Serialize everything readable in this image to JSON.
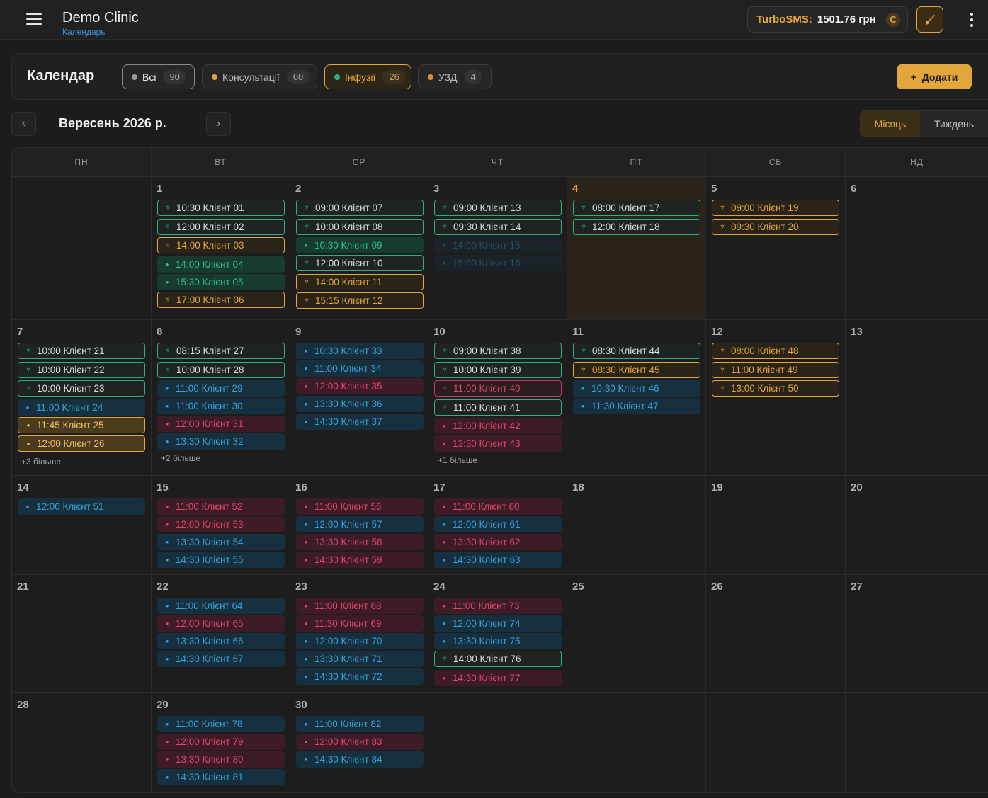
{
  "header": {
    "app_title": "Demo Clinic",
    "subtitle": "Календарь",
    "sms_label": "TurboSMS:",
    "sms_balance": "1501.76 грн",
    "refresh_glyph": "C"
  },
  "panel": {
    "title": "Календар",
    "filters": [
      {
        "label": "Всі",
        "count": "90",
        "dot": "#9a9a9a",
        "state": "all"
      },
      {
        "label": "Консультації",
        "count": "60",
        "dot": "#e2a63b",
        "state": ""
      },
      {
        "label": "Інфузії",
        "count": "26",
        "dot": "#2fae84",
        "state": "inf"
      },
      {
        "label": "УЗД",
        "count": "4",
        "dot": "#e08a3b",
        "state": ""
      }
    ],
    "add_label": "Додати",
    "add_icon": "+"
  },
  "nav": {
    "month_label": "Вересень 2026 р.",
    "prev_glyph": "‹",
    "next_glyph": "›",
    "view_month": "Місяць",
    "view_week": "Тиждень"
  },
  "weekdays": [
    "ПН",
    "ВТ",
    "СР",
    "ЧТ",
    "ПТ",
    "СБ",
    "НД"
  ],
  "weeks": [
    [
      {
        "day": "",
        "events": []
      },
      {
        "day": "1",
        "events": [
          {
            "t": "10:30 Клієнт 01",
            "k": "outline-green",
            "i": "f"
          },
          {
            "t": "12:00 Клієнт 02",
            "k": "outline-green",
            "i": "f"
          },
          {
            "t": "14:00 Клієнт 03",
            "k": "outline-orange",
            "i": "f"
          },
          {
            "t": "14:00 Клієнт 04",
            "k": "fill-green",
            "i": "p"
          },
          {
            "t": "15:30 Клієнт 05",
            "k": "fill-green",
            "i": "p"
          },
          {
            "t": "17:00 Клієнт 06",
            "k": "outline-orange",
            "i": "f"
          }
        ]
      },
      {
        "day": "2",
        "events": [
          {
            "t": "09:00 Клієнт 07",
            "k": "outline-green",
            "i": "f"
          },
          {
            "t": "10:00 Клієнт 08",
            "k": "outline-green",
            "i": "f"
          },
          {
            "t": "10:30 Клієнт 09",
            "k": "fill-green",
            "i": "p"
          },
          {
            "t": "12:00 Клієнт 10",
            "k": "outline-green",
            "i": "f"
          },
          {
            "t": "14:00 Клієнт 11",
            "k": "outline-orange",
            "i": "f"
          },
          {
            "t": "15:15 Клієнт 12",
            "k": "outline-orange",
            "i": "f"
          }
        ]
      },
      {
        "day": "3",
        "events": [
          {
            "t": "09:00 Клієнт 13",
            "k": "outline-green",
            "i": "f"
          },
          {
            "t": "09:30 Клієнт 14",
            "k": "outline-green",
            "i": "f"
          },
          {
            "t": "14:00 Клієнт 15",
            "k": "fill-blue faded",
            "i": "p"
          },
          {
            "t": "15:00 Клієнт 16",
            "k": "fill-blue faded",
            "i": "p"
          }
        ]
      },
      {
        "day": "4",
        "today": true,
        "events": [
          {
            "t": "08:00 Клієнт 17",
            "k": "outline-green",
            "i": "f"
          },
          {
            "t": "12:00 Клієнт 18",
            "k": "outline-green",
            "i": "f"
          }
        ]
      },
      {
        "day": "5",
        "events": [
          {
            "t": "09:00 Клієнт 19",
            "k": "outline-orange",
            "i": "f"
          },
          {
            "t": "09:30 Клієнт 20",
            "k": "outline-orange",
            "i": "f"
          }
        ]
      },
      {
        "day": "6",
        "events": []
      }
    ],
    [
      {
        "day": "7",
        "more": "+3 більше",
        "events": [
          {
            "t": "10:00 Клієнт 21",
            "k": "outline-green",
            "i": "f"
          },
          {
            "t": "10:00 Клієнт 22",
            "k": "outline-green",
            "i": "f"
          },
          {
            "t": "10:00 Клієнт 23",
            "k": "outline-green",
            "i": "f"
          },
          {
            "t": "11:00 Клієнт 24",
            "k": "fill-blue",
            "i": "p"
          },
          {
            "t": "11:45 Клієнт 25",
            "k": "fill-orange",
            "i": "p"
          },
          {
            "t": "12:00 Клієнт 26",
            "k": "fill-orange",
            "i": "p"
          }
        ]
      },
      {
        "day": "8",
        "more": "+2 більше",
        "events": [
          {
            "t": "08:15 Клієнт 27",
            "k": "outline-green",
            "i": "f"
          },
          {
            "t": "10:00 Клієнт 28",
            "k": "outline-green",
            "i": "f"
          },
          {
            "t": "11:00 Клієнт 29",
            "k": "fill-blue",
            "i": "p"
          },
          {
            "t": "11:00 Клієнт 30",
            "k": "fill-blue",
            "i": "p"
          },
          {
            "t": "12:00 Клієнт 31",
            "k": "fill-red",
            "i": "p"
          },
          {
            "t": "13:30 Клієнт 32",
            "k": "fill-blue",
            "i": "p"
          }
        ]
      },
      {
        "day": "9",
        "events": [
          {
            "t": "10:30 Клієнт 33",
            "k": "fill-blue",
            "i": "p"
          },
          {
            "t": "11:00 Клієнт 34",
            "k": "fill-blue",
            "i": "p"
          },
          {
            "t": "12:00 Клієнт 35",
            "k": "fill-red",
            "i": "p"
          },
          {
            "t": "13:30 Клієнт 36",
            "k": "fill-blue",
            "i": "p"
          },
          {
            "t": "14:30 Клієнт 37",
            "k": "fill-blue",
            "i": "p"
          }
        ]
      },
      {
        "day": "10",
        "more": "+1 більше",
        "events": [
          {
            "t": "09:00 Клієнт 38",
            "k": "outline-green",
            "i": "f"
          },
          {
            "t": "10:00 Клієнт 39",
            "k": "outline-green",
            "i": "f"
          },
          {
            "t": "11:00 Клієнт 40",
            "k": "outline-red",
            "i": "f"
          },
          {
            "t": "11:00 Клієнт 41",
            "k": "outline-green",
            "i": "f"
          },
          {
            "t": "12:00 Клієнт 42",
            "k": "fill-red",
            "i": "p"
          },
          {
            "t": "13:30 Клієнт 43",
            "k": "fill-red",
            "i": "p"
          }
        ]
      },
      {
        "day": "11",
        "events": [
          {
            "t": "08:30 Клієнт 44",
            "k": "outline-green",
            "i": "f"
          },
          {
            "t": "08:30 Клієнт 45",
            "k": "outline-orange",
            "i": "f"
          },
          {
            "t": "10:30 Клієнт 46",
            "k": "fill-blue",
            "i": "p"
          },
          {
            "t": "11:30 Клієнт 47",
            "k": "fill-blue",
            "i": "p"
          }
        ]
      },
      {
        "day": "12",
        "events": [
          {
            "t": "08:00 Клієнт 48",
            "k": "outline-orange",
            "i": "f"
          },
          {
            "t": "11:00 Клієнт 49",
            "k": "outline-orange",
            "i": "f"
          },
          {
            "t": "13:00 Клієнт 50",
            "k": "outline-orange",
            "i": "f"
          }
        ]
      },
      {
        "day": "13",
        "events": []
      }
    ],
    [
      {
        "day": "14",
        "events": [
          {
            "t": "12:00 Клієнт 51",
            "k": "fill-blue",
            "i": "p"
          }
        ]
      },
      {
        "day": "15",
        "events": [
          {
            "t": "11:00 Клієнт 52",
            "k": "fill-red",
            "i": "p"
          },
          {
            "t": "12:00 Клієнт 53",
            "k": "fill-red",
            "i": "p"
          },
          {
            "t": "13:30 Клієнт 54",
            "k": "fill-blue",
            "i": "p"
          },
          {
            "t": "14:30 Клієнт 55",
            "k": "fill-blue",
            "i": "p"
          }
        ]
      },
      {
        "day": "16",
        "events": [
          {
            "t": "11:00 Клієнт 56",
            "k": "fill-red",
            "i": "p"
          },
          {
            "t": "12:00 Клієнт 57",
            "k": "fill-blue",
            "i": "p"
          },
          {
            "t": "13:30 Клієнт 58",
            "k": "fill-red",
            "i": "p"
          },
          {
            "t": "14:30 Клієнт 59",
            "k": "fill-red",
            "i": "p"
          }
        ]
      },
      {
        "day": "17",
        "events": [
          {
            "t": "11:00 Клієнт 60",
            "k": "fill-red",
            "i": "p"
          },
          {
            "t": "12:00 Клієнт 61",
            "k": "fill-blue",
            "i": "p"
          },
          {
            "t": "13:30 Клієнт 62",
            "k": "fill-red",
            "i": "p"
          },
          {
            "t": "14:30 Клієнт 63",
            "k": "fill-blue",
            "i": "p"
          }
        ]
      },
      {
        "day": "18",
        "events": []
      },
      {
        "day": "19",
        "events": []
      },
      {
        "day": "20",
        "events": []
      }
    ],
    [
      {
        "day": "21",
        "events": []
      },
      {
        "day": "22",
        "events": [
          {
            "t": "11:00 Клієнт 64",
            "k": "fill-blue",
            "i": "p"
          },
          {
            "t": "12:00 Клієнт 65",
            "k": "fill-red",
            "i": "p"
          },
          {
            "t": "13:30 Клієнт 66",
            "k": "fill-blue",
            "i": "p"
          },
          {
            "t": "14:30 Клієнт 67",
            "k": "fill-blue",
            "i": "p"
          }
        ]
      },
      {
        "day": "23",
        "events": [
          {
            "t": "11:00 Клієнт 68",
            "k": "fill-red",
            "i": "p"
          },
          {
            "t": "11:30 Клієнт 69",
            "k": "fill-red",
            "i": "p"
          },
          {
            "t": "12:00 Клієнт 70",
            "k": "fill-blue",
            "i": "p"
          },
          {
            "t": "13:30 Клієнт 71",
            "k": "fill-blue",
            "i": "p"
          },
          {
            "t": "14:30 Клієнт 72",
            "k": "fill-blue",
            "i": "p"
          }
        ]
      },
      {
        "day": "24",
        "events": [
          {
            "t": "11:00 Клієнт 73",
            "k": "fill-red",
            "i": "p"
          },
          {
            "t": "12:00 Клієнт 74",
            "k": "fill-blue",
            "i": "p"
          },
          {
            "t": "13:30 Клієнт 75",
            "k": "fill-blue",
            "i": "p"
          },
          {
            "t": "14:00 Клієнт 76",
            "k": "outline-green",
            "i": "f"
          },
          {
            "t": "14:30 Клієнт 77",
            "k": "fill-red",
            "i": "p"
          }
        ]
      },
      {
        "day": "25",
        "events": []
      },
      {
        "day": "26",
        "events": []
      },
      {
        "day": "27",
        "events": []
      }
    ],
    [
      {
        "day": "28",
        "events": []
      },
      {
        "day": "29",
        "events": [
          {
            "t": "11:00 Клієнт 78",
            "k": "fill-blue",
            "i": "p"
          },
          {
            "t": "12:00 Клієнт 79",
            "k": "fill-red",
            "i": "p"
          },
          {
            "t": "13:30 Клієнт 80",
            "k": "fill-red",
            "i": "p"
          },
          {
            "t": "14:30 Клієнт 81",
            "k": "fill-blue",
            "i": "p"
          }
        ]
      },
      {
        "day": "30",
        "events": [
          {
            "t": "11:00 Клієнт 82",
            "k": "fill-blue",
            "i": "p"
          },
          {
            "t": "12:00 Клієнт 83",
            "k": "fill-red",
            "i": "p"
          },
          {
            "t": "14:30 Клієнт 84",
            "k": "fill-blue",
            "i": "p"
          }
        ]
      },
      {
        "day": "",
        "events": []
      },
      {
        "day": "",
        "events": []
      },
      {
        "day": "",
        "events": []
      },
      {
        "day": "",
        "events": []
      }
    ]
  ]
}
